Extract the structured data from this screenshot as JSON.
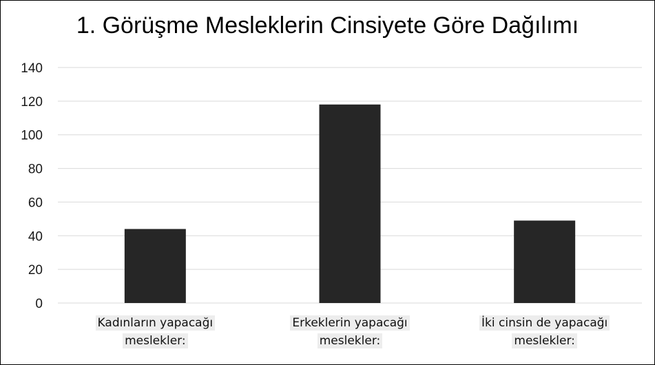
{
  "chart_data": {
    "type": "bar",
    "title": "1. Görüşme Mesleklerin Cinsiyete Göre Dağılımı",
    "categories": [
      "Kadınların yapacağı meslekler:",
      "Erkeklerin yapacağı meslekler:",
      "İki cinsin de yapacağı meslekler:"
    ],
    "values": [
      44,
      118,
      49
    ],
    "yticks": [
      "0",
      "20",
      "40",
      "60",
      "80",
      "100",
      "120",
      "140"
    ],
    "ylim": [
      0,
      140
    ],
    "grid": true,
    "bar_color": "#262626",
    "grid_color": "#d9d9d9"
  }
}
